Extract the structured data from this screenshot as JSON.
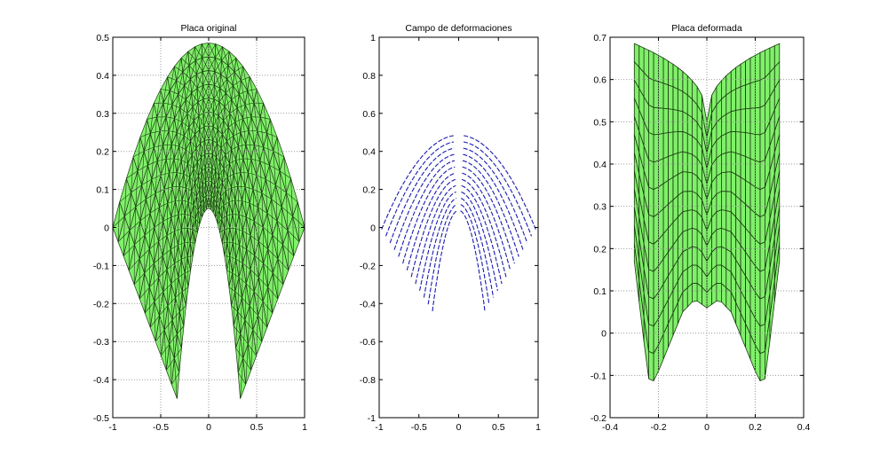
{
  "chart_data": [
    {
      "type": "surface-mesh",
      "title": "Placa original",
      "xlim": [
        -1,
        1
      ],
      "ylim": [
        -0.5,
        0.5
      ],
      "xticks": [
        "-1",
        "-0.5",
        "0",
        "0.5",
        "1"
      ],
      "yticks": [
        "0.5",
        "0.4",
        "0.3",
        "0.2",
        "0.1",
        "0",
        "-0.1",
        "-0.2",
        "-0.3",
        "-0.4",
        "-0.5"
      ],
      "grid": true,
      "fill_color": "#80F06A",
      "outer_arc": {
        "vertex": 0.485,
        "endpoint": [
          1,
          0
        ]
      },
      "inner_arc": {
        "vertex": 0.05,
        "endpoint": [
          0.33,
          -0.45
        ]
      },
      "levels": 12,
      "columns": 28
    },
    {
      "type": "quiver",
      "title": "Campo de deformaciones",
      "xlim": [
        -1,
        1
      ],
      "ylim": [
        -1,
        1
      ],
      "xticks": [
        "-1",
        "-0.5",
        "0",
        "0.5",
        "1"
      ],
      "yticks": [
        "1",
        "0.8",
        "0.6",
        "0.4",
        "0.2",
        "0",
        "-0.2",
        "-0.4",
        "-0.6",
        "-0.8",
        "-1"
      ],
      "grid": false,
      "arrow_color": "#1A1AB0",
      "outer_arc": {
        "vertex": 0.485,
        "endpoint": [
          0.97,
          -0.01
        ]
      },
      "inner_arc": {
        "vertex": 0.09,
        "endpoint": [
          0.33,
          -0.44
        ]
      },
      "levels": 12
    },
    {
      "type": "surface-mesh",
      "title": "Placa deformada",
      "xlim": [
        -0.4,
        0.4
      ],
      "ylim": [
        -0.2,
        0.7
      ],
      "xticks": [
        "-0.4",
        "-0.2",
        "0",
        "0.2",
        "0.4"
      ],
      "yticks": [
        "0.7",
        "0.6",
        "0.5",
        "0.4",
        "0.3",
        "0.2",
        "0.1",
        "0",
        "-0.1",
        "-0.2"
      ],
      "grid": true,
      "fill_color": "#80F06A",
      "half_width": 0.3,
      "top_edge": {
        "center": 0.5,
        "outer": 0.685
      },
      "bottom_edge": {
        "x": [
          0,
          0.05,
          0.1,
          0.15,
          0.2,
          0.235,
          0.26,
          0.3
        ],
        "y": [
          0.06,
          0.08,
          0.05,
          -0.02,
          -0.09,
          -0.13,
          -0.02,
          0.17
        ]
      },
      "levels": 12,
      "columns": 15
    }
  ]
}
